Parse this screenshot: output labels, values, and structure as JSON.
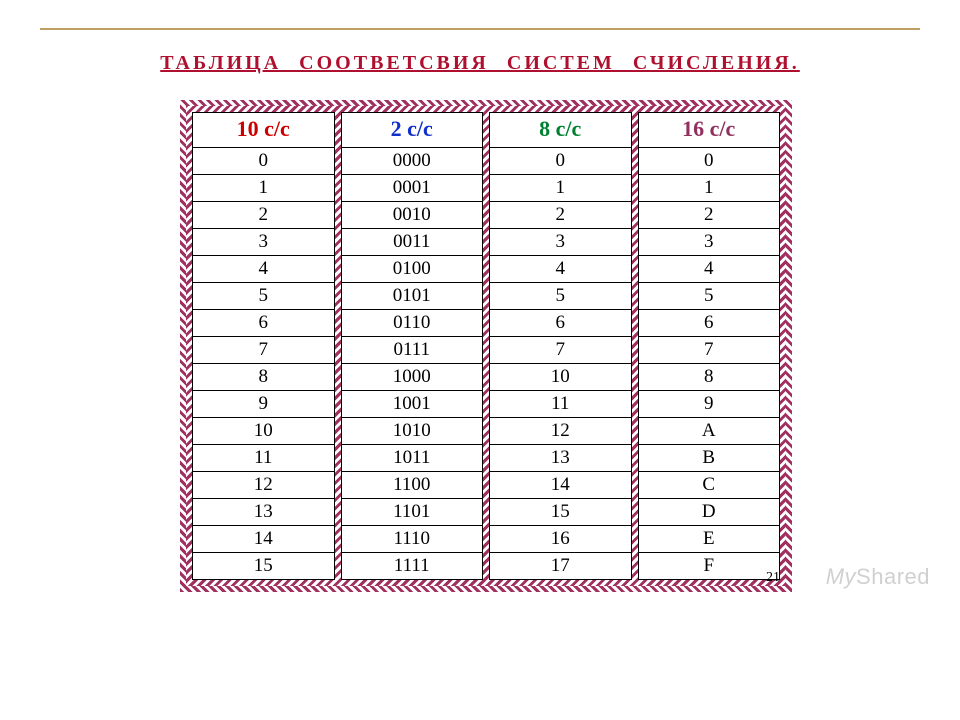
{
  "title": "ТАБЛИЦА   СООТВЕТСВИЯ   СИСТЕМ   СЧИСЛЕНИЯ.",
  "page_number": "21",
  "watermark": {
    "prefix": "My",
    "rest": "Shared"
  },
  "table": {
    "type": "table",
    "border_pattern_color": "#a03060",
    "background_color": "#ffffff",
    "cell_border_color": "#000000",
    "title_color": "#b01030",
    "cell_text_color": "#000000",
    "header_fontsize": 22,
    "cell_fontsize": 19,
    "columns": [
      {
        "label": "10  с/с",
        "color": "#cc0000"
      },
      {
        "label": "2  с/с",
        "color": "#1030cc"
      },
      {
        "label": "8 с/с",
        "color": "#008030"
      },
      {
        "label": "16  с/с",
        "color": "#903060"
      }
    ],
    "rows": [
      [
        "0",
        "0000",
        "0",
        "0"
      ],
      [
        "1",
        "0001",
        "1",
        "1"
      ],
      [
        "2",
        "0010",
        "2",
        "2"
      ],
      [
        "3",
        "0011",
        "3",
        "3"
      ],
      [
        "4",
        "0100",
        "4",
        "4"
      ],
      [
        "5",
        "0101",
        "5",
        "5"
      ],
      [
        "6",
        "0110",
        "6",
        "6"
      ],
      [
        "7",
        "0111",
        "7",
        "7"
      ],
      [
        "8",
        "1000",
        "10",
        "8"
      ],
      [
        "9",
        "1001",
        "11",
        "9"
      ],
      [
        "10",
        "1010",
        "12",
        "A"
      ],
      [
        "11",
        "1011",
        "13",
        "B"
      ],
      [
        "12",
        "1100",
        "14",
        "C"
      ],
      [
        "13",
        "1101",
        "15",
        "D"
      ],
      [
        "14",
        "1110",
        "16",
        "E"
      ],
      [
        "15",
        "1111",
        "17",
        "F"
      ]
    ]
  }
}
